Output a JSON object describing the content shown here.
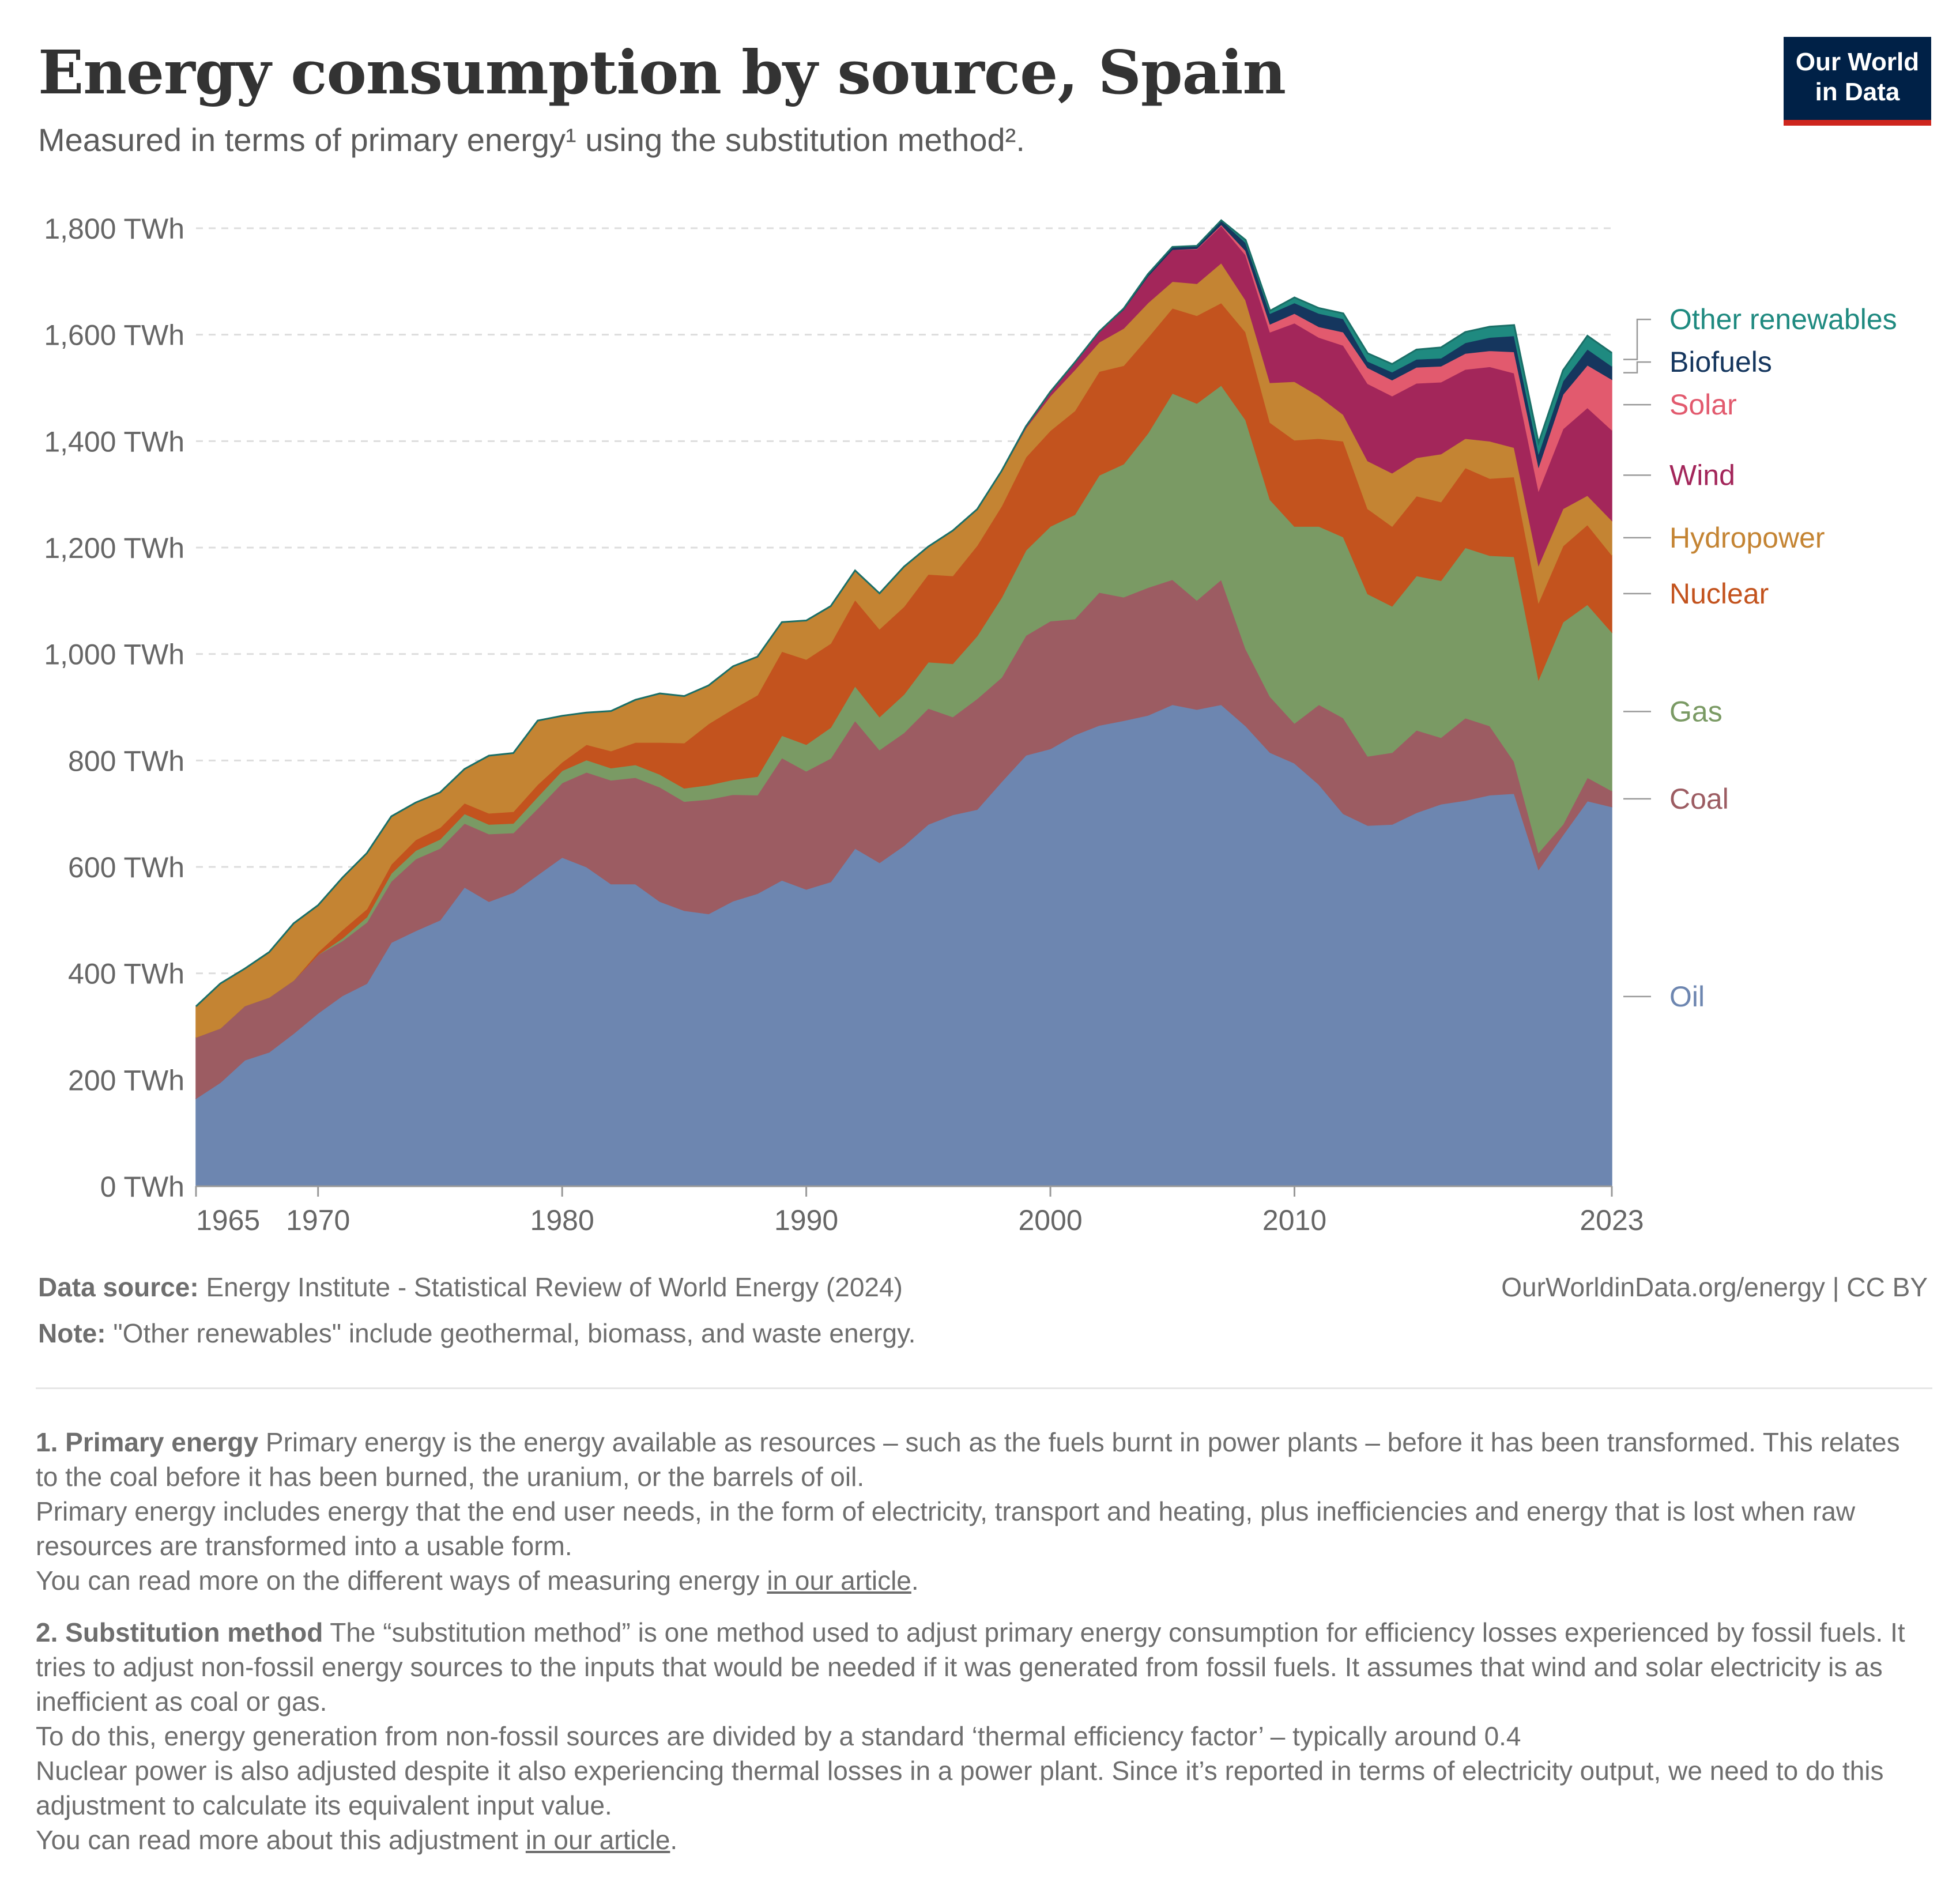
{
  "title": "Energy consumption by source, Spain",
  "subtitle": "Measured in terms of primary energy¹ using the substitution method².",
  "logo": {
    "line1": "Our World",
    "line2": "in Data"
  },
  "source": {
    "label": "Data source:",
    "text": "Energy Institute - Statistical Review of World Energy (2024)"
  },
  "attribution": "OurWorldinData.org/energy | CC BY",
  "note": {
    "label": "Note:",
    "text": "\"Other renewables\" include geothermal, biomass, and waste energy."
  },
  "footnotes": {
    "fn1": {
      "heading": "1. Primary energy",
      "line1": "Primary energy is the energy available as resources – such as the fuels burnt in power plants – before it has been transformed. This relates to the coal before it has been burned, the uranium, or the barrels of oil.",
      "line2": "Primary energy includes energy that the end user needs, in the form of electricity, transport and heating, plus inefficiencies and energy that is lost when raw resources are transformed into a usable form.",
      "line3_pre": "You can read more on the different ways of measuring energy ",
      "line3_link": "in our article",
      "line3_post": "."
    },
    "fn2": {
      "heading": "2. Substitution method",
      "line1": "The “substitution method” is one method used to adjust primary energy consumption for efficiency losses experienced by fossil fuels. It tries to adjust non-fossil energy sources to the inputs that would be needed if it was generated from fossil fuels. It assumes that wind and solar electricity is as inefficient as coal or gas.",
      "line2": "To do this, energy generation from non-fossil sources are divided by a standard ‘thermal efficiency factor’ – typically around 0.4",
      "line3": "Nuclear power is also adjusted despite it also experiencing thermal losses in a power plant. Since it’s reported in terms of electricity output, we need to do this adjustment to calculate its equivalent input value.",
      "line4_pre": "You can read more about this adjustment ",
      "line4_link": "in our article",
      "line4_post": "."
    }
  },
  "chart_data": {
    "type": "area",
    "stacked": true,
    "unit": "TWh",
    "ylim": [
      0,
      1800
    ],
    "yticks": [
      0,
      200,
      400,
      600,
      800,
      1000,
      1200,
      1400,
      1600,
      1800
    ],
    "ytick_labels": [
      "0 TWh",
      "200 TWh",
      "400 TWh",
      "600 TWh",
      "800 TWh",
      "1,000 TWh",
      "1,200 TWh",
      "1,400 TWh",
      "1,600 TWh",
      "1,800 TWh"
    ],
    "xticks": [
      1965,
      1970,
      1980,
      1990,
      2000,
      2010,
      2023
    ],
    "grid": true,
    "legend": "right",
    "x": [
      1965,
      1966,
      1967,
      1968,
      1969,
      1970,
      1971,
      1972,
      1973,
      1974,
      1975,
      1976,
      1977,
      1978,
      1979,
      1980,
      1981,
      1982,
      1983,
      1984,
      1985,
      1986,
      1987,
      1988,
      1989,
      1990,
      1991,
      1992,
      1993,
      1994,
      1995,
      1996,
      1997,
      1998,
      1999,
      2000,
      2001,
      2002,
      2003,
      2004,
      2005,
      2006,
      2007,
      2008,
      2009,
      2010,
      2011,
      2012,
      2013,
      2014,
      2015,
      2016,
      2017,
      2018,
      2019,
      2020,
      2021,
      2022,
      2023
    ],
    "series": [
      {
        "name": "Oil",
        "color": "#6d86b0",
        "values": [
          165,
          195,
          237,
          252,
          287,
          325,
          358,
          381,
          458,
          480,
          500,
          562,
          535,
          552,
          585,
          618,
          600,
          568,
          568,
          535,
          518,
          512,
          536,
          550,
          575,
          558,
          572,
          635,
          608,
          640,
          680,
          698,
          708,
          760,
          810,
          822,
          848,
          866,
          875,
          885,
          905,
          896,
          905,
          865,
          815,
          795,
          755,
          700,
          678,
          680,
          702,
          718,
          725,
          735,
          738,
          595,
          660,
          724,
          713
        ]
      },
      {
        "name": "Coal",
        "color": "#9c5c62",
        "values": [
          115,
          102,
          102,
          103,
          100,
          110,
          103,
          115,
          115,
          135,
          135,
          120,
          127,
          112,
          125,
          140,
          178,
          195,
          200,
          215,
          205,
          215,
          200,
          185,
          230,
          222,
          232,
          240,
          212,
          212,
          218,
          184,
          208,
          196,
          225,
          240,
          218,
          250,
          232,
          240,
          235,
          205,
          235,
          145,
          105,
          75,
          150,
          180,
          130,
          135,
          155,
          125,
          155,
          130,
          60,
          32,
          20,
          44,
          30
        ]
      },
      {
        "name": "Gas",
        "color": "#7a9a64",
        "values": [
          0,
          0,
          0,
          0,
          0,
          0,
          5,
          10,
          15,
          16,
          17,
          18,
          18,
          18,
          22,
          23,
          23,
          23,
          24,
          24,
          25,
          27,
          28,
          35,
          42,
          50,
          58,
          65,
          62,
          72,
          87,
          100,
          118,
          150,
          160,
          178,
          196,
          220,
          250,
          290,
          350,
          370,
          365,
          430,
          370,
          370,
          335,
          340,
          305,
          275,
          290,
          295,
          320,
          320,
          385,
          325,
          380,
          325,
          298
        ]
      },
      {
        "name": "Nuclear",
        "color": "#c3531e",
        "values": [
          0,
          0,
          0,
          0,
          0,
          5,
          16,
          15,
          17,
          20,
          22,
          20,
          21,
          22,
          23,
          16,
          29,
          32,
          42,
          60,
          85,
          115,
          133,
          153,
          158,
          160,
          158,
          162,
          165,
          165,
          165,
          165,
          170,
          172,
          175,
          180,
          195,
          195,
          185,
          180,
          160,
          165,
          155,
          165,
          145,
          162,
          165,
          180,
          160,
          150,
          150,
          148,
          150,
          145,
          150,
          145,
          143,
          150,
          145
        ]
      },
      {
        "name": "Hydropower",
        "color": "#c48433",
        "values": [
          58,
          84,
          70,
          85,
          107,
          88,
          98,
          105,
          90,
          70,
          66,
          64,
          108,
          110,
          120,
          87,
          60,
          75,
          80,
          92,
          88,
          72,
          80,
          72,
          55,
          73,
          70,
          55,
          67,
          75,
          52,
          85,
          68,
          65,
          55,
          65,
          77,
          55,
          70,
          65,
          50,
          60,
          75,
          60,
          75,
          110,
          80,
          50,
          90,
          100,
          72,
          90,
          55,
          70,
          55,
          70,
          70,
          55,
          65
        ]
      },
      {
        "name": "Wind",
        "color": "#a3265a",
        "values": [
          0,
          0,
          0,
          0,
          0,
          0,
          0,
          0,
          0,
          0,
          0,
          0,
          0,
          0,
          0,
          0,
          0,
          0,
          0,
          0,
          0,
          0,
          0,
          0,
          0,
          0,
          0,
          0,
          0,
          0,
          0,
          0,
          0,
          1,
          3,
          8,
          14,
          20,
          35,
          50,
          60,
          65,
          70,
          85,
          95,
          110,
          110,
          130,
          145,
          145,
          140,
          135,
          130,
          140,
          140,
          140,
          150,
          165,
          170
        ]
      },
      {
        "name": "Solar",
        "color": "#e25a6e",
        "values": [
          0,
          0,
          0,
          0,
          0,
          0,
          0,
          0,
          0,
          0,
          0,
          0,
          0,
          0,
          0,
          0,
          0,
          0,
          0,
          0,
          0,
          0,
          0,
          0,
          0,
          0,
          0,
          0,
          0,
          0,
          0,
          0,
          0,
          0,
          0,
          0,
          0,
          0,
          0,
          0,
          0,
          1,
          2,
          8,
          15,
          18,
          20,
          25,
          30,
          30,
          30,
          30,
          30,
          30,
          40,
          45,
          65,
          80,
          95
        ]
      },
      {
        "name": "Biofuels",
        "color": "#15365e",
        "values": [
          0,
          0,
          0,
          0,
          0,
          0,
          0,
          0,
          0,
          0,
          0,
          0,
          0,
          0,
          0,
          0,
          0,
          0,
          0,
          0,
          0,
          0,
          0,
          0,
          0,
          0,
          0,
          0,
          0,
          0,
          0,
          0,
          0,
          0,
          0,
          0,
          0,
          0,
          2,
          4,
          5,
          5,
          8,
          15,
          20,
          20,
          25,
          25,
          12,
          15,
          15,
          15,
          20,
          25,
          30,
          25,
          25,
          30,
          25
        ]
      },
      {
        "name": "Other renewables",
        "color": "#1f8a80",
        "values": [
          0,
          0,
          0,
          0,
          0,
          0,
          0,
          0,
          0,
          0,
          0,
          0,
          0,
          0,
          0,
          0,
          0,
          0,
          0,
          0,
          0,
          0,
          0,
          0,
          0,
          0,
          0,
          0,
          0,
          0,
          0,
          0,
          0,
          0,
          0,
          0,
          0,
          0,
          0,
          0,
          0,
          0,
          0,
          5,
          5,
          10,
          10,
          10,
          15,
          15,
          18,
          20,
          20,
          20,
          20,
          20,
          20,
          25,
          25
        ]
      }
    ]
  }
}
